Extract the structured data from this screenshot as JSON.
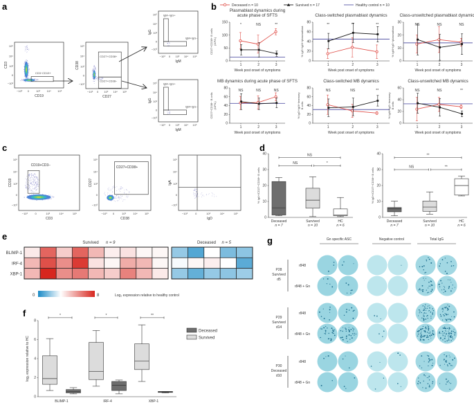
{
  "panel_labels": {
    "a": "a",
    "b": "b",
    "c": "c",
    "d": "d",
    "e": "e",
    "f": "f",
    "g": "g"
  },
  "flow_ticks": [
    "−10³",
    "0",
    "10³",
    "10⁴",
    "10⁵"
  ],
  "flow_a": {
    "plots": [
      {
        "xlabel": "CD19",
        "ylabel": "CD3",
        "gates": [
          "CD3−CD19+"
        ]
      },
      {
        "xlabel": "CD27",
        "ylabel": "CD38",
        "gates": [
          "CD27+CD38+",
          "CD27+CD38−"
        ]
      },
      {
        "xlabel": "IgM",
        "ylabel": "IgG",
        "gates": [
          "IgM−IgG+",
          "IgM+IgG−"
        ]
      },
      {
        "xlabel": "IgM",
        "ylabel": "IgG",
        "gates": [
          "IgM−IgG+",
          "IgM+IgG−"
        ]
      }
    ]
  },
  "flow_c": {
    "plots": [
      {
        "xlabel": "CD3",
        "ylabel": "CD19",
        "gates": [
          "CD19+CD3−"
        ]
      },
      {
        "xlabel": "CD38",
        "ylabel": "CD27",
        "gates": [
          "CD27+CD38+"
        ]
      },
      {
        "xlabel": "IgD",
        "ylabel": "IgA",
        "gates": []
      }
    ]
  },
  "legend_b": {
    "deceased": "Deceased n = 10",
    "survived": "Survived n = 17",
    "healthy": "Healthy control n = 10"
  },
  "colors": {
    "deceased": "#e0504a",
    "survived": "#1a1a1a",
    "healthy": "#5a5aa8",
    "box_deceased": "#6e6e6e",
    "box_survived": "#dcdcdc",
    "box_hc": "#ffffff"
  },
  "chart_data": [
    {
      "type": "line",
      "title": "Plasmablast dynamics during acute phase of SFTS",
      "title_lines": [
        "Plasmablast dynamics during",
        "acute phase of SFTS"
      ],
      "ylabel": "CD27+CD38+ B cells",
      "ylabel2": "(10⁶/L)",
      "xlabel": "Week post onset of symptoms",
      "categories": [
        "1",
        "2",
        "3"
      ],
      "ylim": [
        0,
        150
      ],
      "yticks": [
        "0",
        "50",
        "100",
        "150"
      ],
      "healthy_control": 15,
      "significance": [
        "*",
        "NS",
        "**"
      ],
      "series": [
        {
          "name": "Deceased",
          "values": [
            78,
            65,
            113
          ],
          "errors": [
            32,
            35,
            12
          ]
        },
        {
          "name": "Survived",
          "values": [
            43,
            43,
            28
          ],
          "errors": [
            20,
            28,
            10
          ]
        }
      ]
    },
    {
      "type": "line",
      "title": "Class-switched plasmablast dynamics",
      "title_lines": [
        "Class-switched plasmablast dynamics"
      ],
      "ylabel": "% IgG+IgM−/plasmablast",
      "ylabel2": "",
      "xlabel": "Week post onset of symptoms",
      "categories": [
        "1",
        "2",
        "3"
      ],
      "ylim": [
        0,
        80
      ],
      "yticks": [
        "0",
        "20",
        "40",
        "60",
        "80"
      ],
      "healthy_control": 45,
      "significance": [
        "**",
        "**",
        "**"
      ],
      "series": [
        {
          "name": "Deceased",
          "values": [
            15,
            28,
            19
          ],
          "errors": [
            10,
            20,
            14
          ]
        },
        {
          "name": "Survived",
          "values": [
            41,
            58,
            55
          ],
          "errors": [
            16,
            20,
            16
          ]
        }
      ]
    },
    {
      "type": "line",
      "title": "Class-unswitched plasmablast dynamics",
      "title_lines": [
        "Class-unswitched plasmablast dynamics"
      ],
      "ylabel": "% IgM+IgG−/plasmablast",
      "ylabel2": "",
      "xlabel": "Week post onset of symptoms",
      "categories": [
        "1",
        "2",
        "3"
      ],
      "ylim": [
        0,
        30
      ],
      "yticks": [
        "0",
        "10",
        "20",
        "30"
      ],
      "healthy_control": 14,
      "significance": [
        "NS",
        "NS",
        "NS"
      ],
      "series": [
        {
          "name": "Deceased",
          "values": [
            13,
            16.5,
            14.5
          ],
          "errors": [
            7,
            10,
            3
          ]
        },
        {
          "name": "Survived",
          "values": [
            16.5,
            10.5,
            13
          ],
          "errors": [
            12,
            10,
            8
          ]
        }
      ]
    },
    {
      "type": "line",
      "title": "MB dynamics during acute phase of SFTS",
      "title_lines": [
        "MB dynamics during acute phase of SFTS"
      ],
      "ylabel": "CD27+CD38− B cells",
      "ylabel2": "(10⁶/L)",
      "xlabel": "Week post onset of symptoms",
      "categories": [
        "1",
        "2",
        "3"
      ],
      "ylim": [
        0,
        80
      ],
      "yticks": [
        "0",
        "20",
        "40",
        "60",
        "80"
      ],
      "healthy_control": 45,
      "significance": [
        "NS",
        "NS",
        "NS"
      ],
      "series": [
        {
          "name": "Deceased",
          "values": [
            46,
            47,
            60
          ],
          "errors": [
            15,
            15,
            9
          ]
        },
        {
          "name": "Survived",
          "values": [
            49,
            44,
            46
          ],
          "errors": [
            18,
            13,
            11
          ]
        }
      ]
    },
    {
      "type": "line",
      "title": "Class-switched MB dynamics",
      "title_lines": [
        "Class-switched MB dynamics"
      ],
      "ylabel": "% IgG+IgM−/memory",
      "ylabel2": "B cells",
      "xlabel": "Week post onset of symptoms",
      "categories": [
        "1",
        "2",
        "3"
      ],
      "ylim": [
        0,
        80
      ],
      "yticks": [
        "0",
        "20",
        "40",
        "60",
        "80"
      ],
      "healthy_control": 31,
      "significance": [
        "NS",
        "NS",
        "**"
      ],
      "series": [
        {
          "name": "Deceased",
          "values": [
            42,
            28,
            23
          ],
          "errors": [
            22,
            15,
            3
          ]
        },
        {
          "name": "Survived",
          "values": [
            35,
            37,
            51
          ],
          "errors": [
            20,
            20,
            12
          ]
        }
      ]
    },
    {
      "type": "line",
      "title": "Class-unswitched MB dynamics",
      "title_lines": [
        "Class-unswitched MB dynamics"
      ],
      "ylabel": "% IgM+IgG−/memory",
      "ylabel2": "B cells",
      "xlabel": "Week post onset of symptoms",
      "categories": [
        "1",
        "2",
        "3"
      ],
      "ylim": [
        0,
        60
      ],
      "yticks": [
        "0",
        "20",
        "40",
        "60"
      ],
      "healthy_control": 33,
      "significance": [
        "NS",
        "NS",
        "**"
      ],
      "series": [
        {
          "name": "Deceased",
          "values": [
            24,
            32,
            28
          ],
          "errors": [
            20,
            12,
            3
          ]
        },
        {
          "name": "Survived",
          "values": [
            34,
            27,
            16
          ],
          "errors": [
            17,
            15,
            5
          ]
        }
      ]
    },
    {
      "type": "box",
      "ylabel": "% IgA+/CD27+CD38+ B cells",
      "ylim": [
        0,
        40
      ],
      "yticks": [
        "0",
        "10",
        "20",
        "30",
        "40"
      ],
      "categories": [
        "Deceased",
        "Survived",
        "HC"
      ],
      "n_labels": [
        "n = 7",
        "n = 10",
        "n = 6"
      ],
      "boxes": [
        {
          "min": 1,
          "q1": 1.5,
          "median": 6,
          "q3": 22.5,
          "max": 25
        },
        {
          "min": 0.5,
          "q1": 5.8,
          "median": 10.8,
          "q3": 18.3,
          "max": 25.5
        },
        {
          "min": 0.5,
          "q1": 1,
          "median": 1.5,
          "q3": 5.3,
          "max": 12.5
        }
      ],
      "brackets": [
        {
          "from": 0,
          "to": 2,
          "level": 37.5,
          "label": "NS"
        },
        {
          "from": 0,
          "to": 1,
          "level": 32.5,
          "label": "NS"
        },
        {
          "from": 1,
          "to": 2,
          "level": 32.5,
          "label": "*"
        }
      ]
    },
    {
      "type": "box",
      "ylabel": "% IgD+/CD27+CD38+ B cells",
      "ylim": [
        0,
        40
      ],
      "yticks": [
        "0",
        "10",
        "20",
        "30",
        "40"
      ],
      "categories": [
        "Deceased",
        "Survived",
        "HC"
      ],
      "n_labels": [
        "n = 7",
        "n = 10",
        "n = 6"
      ],
      "boxes": [
        {
          "min": 1,
          "q1": 3.5,
          "median": 5.5,
          "q3": 6.2,
          "max": 10.2
        },
        {
          "min": 2,
          "q1": 3.8,
          "median": 6.5,
          "q3": 10.3,
          "max": 16
        },
        {
          "min": 13.5,
          "q1": 14,
          "median": 20,
          "q3": 24.3,
          "max": 26
        }
      ],
      "brackets": [
        {
          "from": 0,
          "to": 2,
          "level": 37.5,
          "label": "**"
        },
        {
          "from": 0,
          "to": 1,
          "level": 30,
          "label": "NS"
        },
        {
          "from": 1,
          "to": 2,
          "level": 30,
          "label": "**"
        }
      ]
    },
    {
      "type": "box",
      "ylabel": "log₂ expression relative to HC",
      "ylim": [
        0,
        8
      ],
      "yticks": [
        "0",
        "2",
        "4",
        "6",
        "8"
      ],
      "categories": [
        "BLIMP-1",
        "IRF-4",
        "XBP-1"
      ],
      "legend": [
        "Deceased",
        "Survived"
      ],
      "groups": [
        {
          "survived": {
            "min": 0.65,
            "q1": 1.3,
            "median": 1.9,
            "q3": 4.3,
            "max": 6.1
          },
          "deceased": {
            "min": 0.3,
            "q1": 0.4,
            "median": 0.55,
            "q3": 0.75,
            "max": 0.95
          },
          "significance": "*"
        },
        {
          "survived": {
            "min": 1.1,
            "q1": 1.8,
            "median": 2.65,
            "q3": 5.7,
            "max": 6.95
          },
          "deceased": {
            "min": 0.3,
            "q1": 0.65,
            "median": 1.2,
            "q3": 1.6,
            "max": 1.75
          },
          "significance": "*"
        },
        {
          "survived": {
            "min": 1.6,
            "q1": 2.85,
            "median": 3.75,
            "q3": 5.55,
            "max": 7.55
          },
          "deceased": {
            "min": 0.4,
            "q1": 0.45,
            "median": 0.5,
            "q3": 0.55,
            "max": 0.55
          },
          "significance": "**"
        }
      ]
    },
    {
      "type": "heatmap",
      "rows": [
        "BLIMP-1",
        "IRF-4",
        "XBP-1"
      ],
      "groups": [
        {
          "title": "Survived",
          "n": "n = 9",
          "values": [
            [
              3.3,
              6.5,
              4,
              6.5,
              4.5,
              3.2,
              3.5,
              3,
              3
            ],
            [
              4.5,
              7,
              5.5,
              7.5,
              3.5,
              3,
              4.8,
              4.5,
              3
            ],
            [
              4.5,
              8,
              5.5,
              6,
              4.5,
              4,
              5.8,
              4.5,
              3.3
            ]
          ]
        },
        {
          "title": "Deceased",
          "n": "n = 5",
          "values": [
            [
              1.5,
              0.7,
              2.8,
              1.2,
              1.4
            ],
            [
              2.7,
              3,
              3.2,
              2.8,
              0.8
            ],
            [
              1.5,
              0.9,
              1.5,
              1.4,
              1.6
            ]
          ]
        }
      ],
      "colorbar": {
        "min": "0",
        "max": "8",
        "label": "Log₂ expression relative to healthy control",
        "low_color": "#1a8ac6",
        "mid_color": "#ffffff",
        "high_color": "#d7261e"
      }
    }
  ],
  "elispot": {
    "columns": [
      "Gn specific ASC",
      "Negative control",
      "Total IgG"
    ],
    "samples": [
      {
        "id": "P28",
        "status": "Survived",
        "day": "d5",
        "rows": [
          {
            "label": "r848",
            "spots": [
              3,
              3,
              0,
              1,
              12,
              10
            ]
          },
          {
            "label": "r848 + Gn",
            "spots": [
              5,
              6,
              0,
              0,
              25,
              20
            ]
          }
        ]
      },
      {
        "id": "P29",
        "status": "Survived",
        "day": "d14",
        "rows": [
          {
            "label": "r848",
            "spots": [
              10,
              8,
              3,
              0,
              40,
              30
            ]
          },
          {
            "label": "r848 + Gn",
            "spots": [
              25,
              30,
              3,
              0,
              60,
              55
            ]
          }
        ]
      },
      {
        "id": "P30",
        "status": "Deceased",
        "day": "d10",
        "rows": [
          {
            "label": "r848",
            "spots": [
              3,
              3,
              2,
              2,
              15,
              20
            ]
          },
          {
            "label": "r848 + Gn",
            "spots": [
              2,
              3,
              2,
              2,
              20,
              8
            ]
          }
        ]
      }
    ]
  }
}
